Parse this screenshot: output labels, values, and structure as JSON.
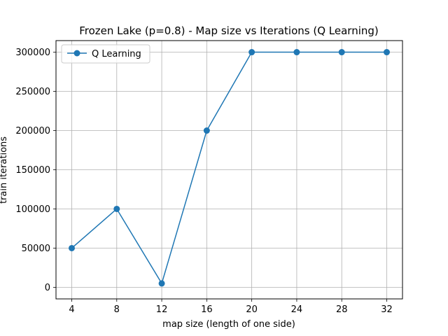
{
  "chart_data": {
    "type": "line",
    "title": "Frozen Lake (p=0.8) - Map size vs Iterations (Q Learning)",
    "xlabel": "map size (length of one side)",
    "ylabel": "train iterations",
    "x": [
      4,
      8,
      12,
      16,
      20,
      24,
      28,
      32
    ],
    "series": [
      {
        "name": "Q Learning",
        "color": "#1f77b4",
        "marker": "circle",
        "values": [
          50000,
          100000,
          5000,
          200000,
          300000,
          300000,
          300000,
          300000
        ]
      }
    ],
    "xticks": [
      "4",
      "8",
      "12",
      "16",
      "20",
      "24",
      "28",
      "32"
    ],
    "yticks": [
      "0",
      "50000",
      "100000",
      "150000",
      "200000",
      "250000",
      "300000"
    ],
    "xlim": [
      2.6,
      33.4
    ],
    "ylim": [
      -14750,
      314750
    ],
    "grid": true,
    "legend_position": "top-left"
  }
}
